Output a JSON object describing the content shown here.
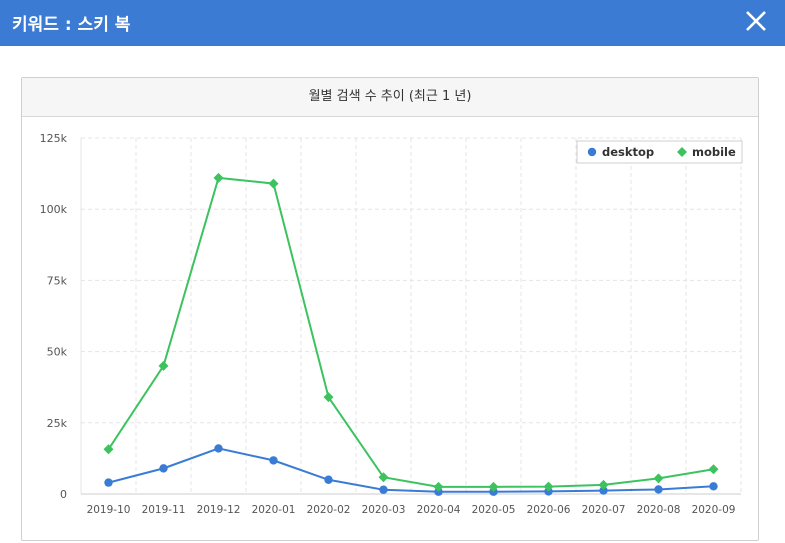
{
  "window": {
    "title": "키워드 : 스키 복",
    "close_icon": "close-icon"
  },
  "panel": {
    "title": "월별 검색 수 추이 (최근 1 년)"
  },
  "colors": {
    "header": "#3b7bd4",
    "desktop": "#3a7bd5",
    "mobile": "#3cc35f"
  },
  "chart_data": {
    "type": "line",
    "categories": [
      "2019-10",
      "2019-11",
      "2019-12",
      "2020-01",
      "2020-02",
      "2020-03",
      "2020-04",
      "2020-05",
      "2020-06",
      "2020-07",
      "2020-08",
      "2020-09"
    ],
    "series": [
      {
        "name": "desktop",
        "marker": "circle",
        "values": [
          4000,
          9000,
          16000,
          11800,
          5000,
          1500,
          800,
          800,
          900,
          1200,
          1600,
          2700
        ]
      },
      {
        "name": "mobile",
        "marker": "diamond",
        "values": [
          15700,
          45000,
          111000,
          109000,
          34000,
          5900,
          2500,
          2500,
          2600,
          3200,
          5500,
          8700
        ]
      }
    ],
    "yticks": [
      "0",
      "25k",
      "50k",
      "75k",
      "100k",
      "125k"
    ],
    "ylim": [
      0,
      125000
    ],
    "grid": true,
    "legend": "top-right"
  }
}
